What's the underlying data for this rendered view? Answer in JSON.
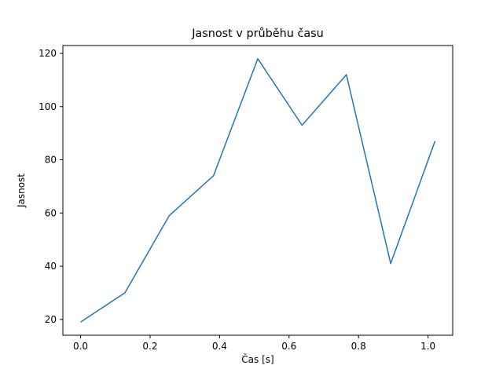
{
  "figure": {
    "background": "#ffffff"
  },
  "chart_data": {
    "type": "line",
    "title": "Jasnost v průběhu času",
    "xlabel": "Čas [s]",
    "ylabel": "Jasnost",
    "x": [
      0.0,
      0.1275,
      0.255,
      0.3825,
      0.51,
      0.6375,
      0.765,
      0.8925,
      1.02
    ],
    "values": [
      19,
      30,
      59,
      74,
      118,
      93,
      112,
      41,
      87
    ],
    "series_name": "Jasnost",
    "line_color": "#1f77b4",
    "line_width": 1.5,
    "xlim": [
      -0.051,
      1.071
    ],
    "ylim": [
      14.05,
      122.95
    ],
    "xtick_values": [
      0.0,
      0.2,
      0.4,
      0.6,
      0.8,
      1.0
    ],
    "xtick_labels": [
      "0.0",
      "0.2",
      "0.4",
      "0.6",
      "0.8",
      "1.0"
    ],
    "ytick_values": [
      20,
      40,
      60,
      80,
      100,
      120
    ],
    "ytick_labels": [
      "20",
      "40",
      "60",
      "80",
      "100",
      "120"
    ],
    "grid": false,
    "legend": "none",
    "axes_color": "#000000"
  }
}
